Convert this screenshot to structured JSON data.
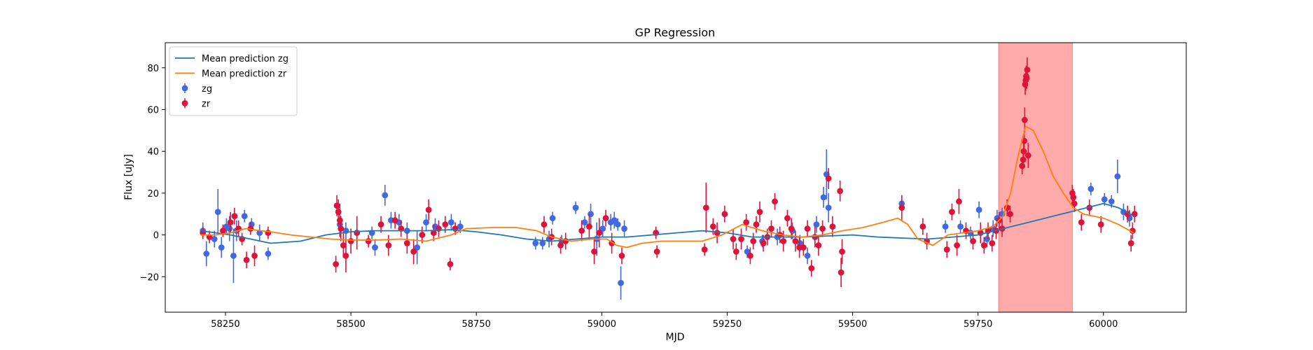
{
  "chart_data": {
    "type": "scatter",
    "title": "GP Regression",
    "xlabel": "MJD",
    "ylabel": "Flux [uJy]",
    "xlim": [
      58130,
      60165
    ],
    "ylim": [
      -37,
      92
    ],
    "xticks": [
      58250,
      58500,
      58750,
      59000,
      59250,
      59500,
      59750,
      60000
    ],
    "yticks": [
      -20,
      0,
      20,
      40,
      60,
      80
    ],
    "grid": false,
    "legend_position": "top-left",
    "highlight_region": {
      "x": [
        59791,
        59938
      ],
      "color": "#ff0000",
      "opacity": 0.33
    },
    "series": [
      {
        "name": "Mean prediction zg",
        "kind": "line",
        "color": "#1f77b4",
        "x": [
          58200,
          58260,
          58300,
          58340,
          58400,
          58450,
          58500,
          58550,
          58600,
          58650,
          58700,
          58750,
          58800,
          58850,
          58900,
          58950,
          59000,
          59050,
          59100,
          59150,
          59200,
          59250,
          59300,
          59350,
          59400,
          59450,
          59500,
          59550,
          59600,
          59650,
          59700,
          59750,
          59800,
          59850,
          59900,
          59950,
          60000,
          60030,
          60060
        ],
        "y": [
          2,
          0,
          -2,
          -4,
          -3,
          0,
          1.5,
          2,
          2,
          2,
          2.5,
          1.5,
          0,
          -2,
          -3,
          -2,
          -1,
          -1,
          0,
          1,
          2,
          1,
          -1,
          -1,
          -1,
          -0.5,
          0,
          -1,
          -1.5,
          -2,
          -1,
          0,
          3,
          6,
          9,
          12,
          15,
          13,
          9
        ]
      },
      {
        "name": "Mean prediction zr",
        "kind": "line",
        "color": "#ff7f0e",
        "x": [
          58200,
          58230,
          58260,
          58290,
          58320,
          58340,
          58380,
          58420,
          58460,
          58500,
          58550,
          58600,
          58650,
          58700,
          58730,
          58780,
          58830,
          58870,
          58900,
          58940,
          58980,
          59010,
          59030,
          59050,
          59080,
          59120,
          59160,
          59200,
          59240,
          59280,
          59320,
          59360,
          59400,
          59440,
          59480,
          59520,
          59560,
          59590,
          59610,
          59630,
          59660,
          59690,
          59720,
          59750,
          59780,
          59800,
          59815,
          59830,
          59845,
          59860,
          59880,
          59900,
          59920,
          59940,
          59960,
          60000,
          60030,
          60060
        ],
        "y": [
          0,
          0,
          1,
          3,
          2,
          1.5,
          0,
          -1,
          -2,
          -2.5,
          -2.5,
          -2,
          -3,
          0,
          3,
          3.5,
          3.5,
          2,
          -1,
          -3,
          -2,
          -2,
          -5,
          -6,
          -4,
          -3,
          -3,
          -3,
          0,
          5,
          2,
          0,
          -1,
          0,
          2,
          3.5,
          6,
          8,
          5,
          -2,
          -5,
          0,
          1,
          2,
          4,
          9,
          20,
          38,
          52,
          50,
          40,
          28,
          20,
          13,
          10,
          8,
          5,
          1
        ]
      },
      {
        "name": "zg",
        "kind": "errorbar",
        "color": "#4169e1",
        "x": [
          58205,
          58212,
          58228,
          58235,
          58242,
          58252,
          58258,
          58266,
          58272,
          58288,
          58302,
          58318,
          58335,
          58478,
          58490,
          58542,
          58548,
          58568,
          58580,
          58596,
          58612,
          58632,
          58650,
          58668,
          58700,
          58718,
          58868,
          58882,
          58895,
          58902,
          58920,
          58948,
          58966,
          58978,
          58990,
          59002,
          59018,
          59025,
          59032,
          59038,
          59045,
          59290,
          59320,
          59350,
          59380,
          59395,
          59410,
          59428,
          59442,
          59448,
          59452,
          59598,
          59685,
          59715,
          59735,
          59752,
          59768,
          59780,
          59788,
          59798,
          59975,
          60002,
          60016,
          60028,
          60040,
          60052
        ],
        "y": [
          2,
          -9,
          -2,
          11,
          -6,
          4,
          3,
          -10,
          2,
          9,
          5,
          1,
          -9,
          5,
          2,
          1,
          -6,
          19,
          7,
          6,
          2,
          -6,
          6,
          4,
          6,
          4,
          -4,
          -4,
          -2,
          8,
          -3,
          13,
          6,
          10,
          -2,
          3,
          6,
          7,
          5,
          -23,
          3,
          -8,
          -3,
          -1,
          2,
          -4,
          -10,
          5,
          18,
          29,
          13,
          15,
          4,
          4,
          1,
          12,
          -2,
          3,
          8,
          10,
          22,
          17,
          16,
          28,
          11,
          8
        ],
        "yerr": [
          4,
          6,
          4,
          11,
          5,
          4,
          6,
          13,
          5,
          3,
          3,
          4,
          3,
          4,
          4,
          3,
          4,
          5,
          4,
          4,
          4,
          8,
          4,
          4,
          4,
          3,
          3,
          3,
          4,
          3,
          3,
          3,
          3,
          5,
          8,
          4,
          4,
          4,
          3,
          8,
          4,
          3,
          3,
          4,
          4,
          4,
          4,
          4,
          5,
          12,
          7,
          4,
          3,
          3,
          3,
          4,
          4,
          4,
          4,
          3,
          3,
          3,
          3,
          8,
          4,
          4
        ]
      },
      {
        "name": "zr",
        "kind": "errorbar",
        "color": "#dc143c",
        "x": [
          58205,
          58218,
          58245,
          58260,
          58268,
          58276,
          58283,
          58292,
          58300,
          58308,
          58335,
          58470,
          58472,
          58475,
          58478,
          58480,
          58485,
          58490,
          58500,
          58512,
          58535,
          58560,
          58575,
          58588,
          58600,
          58612,
          58625,
          58642,
          58655,
          58665,
          58675,
          58688,
          58698,
          58708,
          58885,
          58900,
          58918,
          58928,
          58960,
          58975,
          58985,
          58995,
          59008,
          59020,
          59040,
          59108,
          59110,
          59205,
          59208,
          59222,
          59230,
          59245,
          59262,
          59268,
          59278,
          59288,
          59296,
          59302,
          59308,
          59315,
          59322,
          59330,
          59338,
          59345,
          59355,
          59362,
          59370,
          59378,
          59386,
          59394,
          59402,
          59410,
          59418,
          59425,
          59432,
          59440,
          59452,
          59460,
          59475,
          59477,
          59479,
          59598,
          59640,
          59648,
          59688,
          59698,
          59708,
          59712,
          59726,
          59740,
          59755,
          59762,
          59770,
          59778,
          59786,
          59792,
          59798,
          59808,
          59814,
          59838,
          59840,
          59841,
          59842,
          59843,
          59844,
          59845,
          59846,
          59847,
          59848,
          59850,
          59938,
          59940,
          59942,
          59956,
          59972,
          59995,
          60048,
          60055,
          60058,
          60062
        ],
        "y": [
          1,
          -1,
          2,
          6,
          9,
          3,
          -2,
          -12,
          3,
          -10,
          1,
          -14,
          14,
          11,
          7,
          3,
          -5,
          -10,
          -3,
          1,
          -3,
          5,
          -5,
          7,
          3,
          -4,
          -8,
          0,
          12,
          1,
          3,
          5,
          -14,
          3,
          5,
          -1,
          -5,
          -3,
          2,
          4,
          -8,
          1,
          8,
          -4,
          -10,
          1,
          -8,
          -7,
          13,
          4,
          1,
          10,
          -2,
          -8,
          -2,
          6,
          -10,
          -3,
          5,
          11,
          -4,
          -1,
          3,
          16,
          0,
          -3,
          8,
          3,
          -3,
          -6,
          -6,
          3,
          -16,
          -1,
          -5,
          3,
          27,
          4,
          21,
          -18,
          -8,
          13,
          4,
          -3,
          -7,
          11,
          -5,
          16,
          2,
          -3,
          1,
          -5,
          2,
          -4,
          2,
          7,
          3,
          13,
          10,
          33,
          36,
          40,
          45,
          55,
          72,
          74,
          76,
          75,
          79,
          38,
          20,
          18,
          15,
          6,
          13,
          5,
          10,
          -4,
          2,
          10
        ],
        "yerr": [
          3,
          3,
          3,
          5,
          4,
          4,
          3,
          4,
          3,
          5,
          3,
          4,
          5,
          6,
          8,
          6,
          6,
          8,
          6,
          8,
          3,
          4,
          5,
          4,
          4,
          5,
          6,
          4,
          5,
          4,
          4,
          4,
          3,
          3,
          4,
          4,
          4,
          4,
          5,
          6,
          6,
          7,
          4,
          5,
          4,
          3,
          3,
          3,
          12,
          4,
          5,
          4,
          5,
          4,
          5,
          4,
          4,
          4,
          4,
          5,
          4,
          4,
          4,
          4,
          4,
          5,
          4,
          5,
          5,
          5,
          4,
          4,
          4,
          5,
          5,
          4,
          5,
          5,
          5,
          7,
          6,
          6,
          4,
          4,
          4,
          4,
          5,
          6,
          4,
          4,
          5,
          4,
          4,
          4,
          4,
          4,
          4,
          4,
          4,
          4,
          4,
          4,
          5,
          6,
          5,
          5,
          5,
          5,
          6,
          6,
          4,
          4,
          4,
          4,
          4,
          4,
          4,
          4,
          4,
          4
        ]
      }
    ]
  }
}
